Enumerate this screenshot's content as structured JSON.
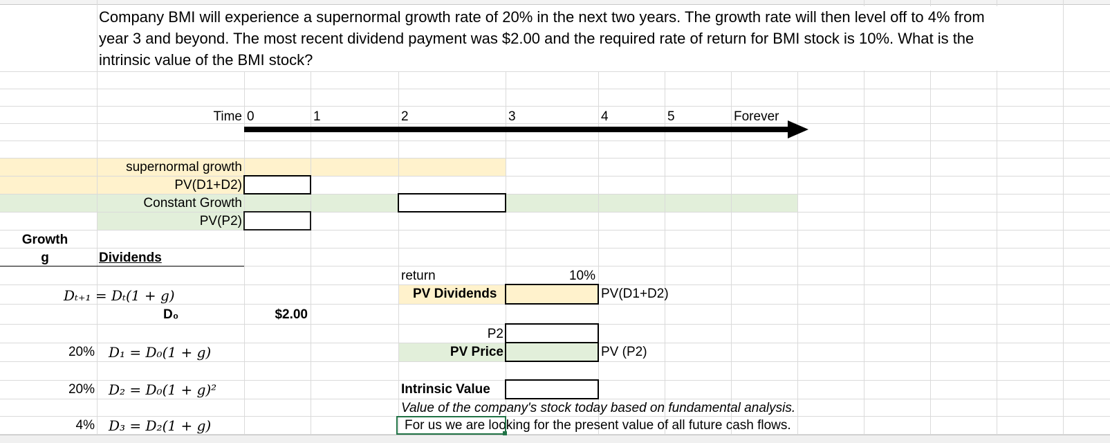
{
  "question": "Company BMI will experience a supernormal growth rate of 20% in the next two years. The growth rate will then level off to 4% from year 3 and beyond. The most recent dividend payment was $2.00 and the required rate of return for BMI stock is 10%. What is the intrinsic value of the BMI stock?",
  "timeline": {
    "label": "Time",
    "ticks": [
      "0",
      "1",
      "2",
      "3",
      "4",
      "5",
      "Forever"
    ]
  },
  "segments": {
    "supernormal_label": "supernormal growth",
    "pv_d1_d2_label": "PV(D1+D2)",
    "constant_label": "Constant Growth",
    "pv_p2_label": "PV(P2)"
  },
  "headers": {
    "growth": "Growth",
    "g": "g",
    "dividends": "Dividends"
  },
  "formulas": {
    "general": "Dₜ₊₁ = Dₜ(1 + g)",
    "d0_label": "D₀",
    "d0_value": "$2.00",
    "d1": "D₁ = D₀(1 + g)",
    "d2": "D₂ = D₀(1 + g)²",
    "d3": "D₃ = D₂(1 + g)",
    "g1": "20%",
    "g2": "20%",
    "g3": "4%"
  },
  "valuation": {
    "return_label": "return",
    "return_value": "10%",
    "pv_dividends_label": "PV Dividends",
    "pv_dividends_note": "PV(D1+D2)",
    "p2_label": "P2",
    "pv_price_label": "PV Price",
    "pv_price_note": "PV (P2)",
    "intrinsic_label": "Intrinsic Value",
    "note1": "Value of the company's stock today based on fundamental analysis.",
    "note2": "For us we are looking for the present value of all future cash flows."
  },
  "colors": {
    "supernormal_fill": "#fff2cc",
    "constant_fill": "#e2efda",
    "active_cell": "#217346"
  }
}
